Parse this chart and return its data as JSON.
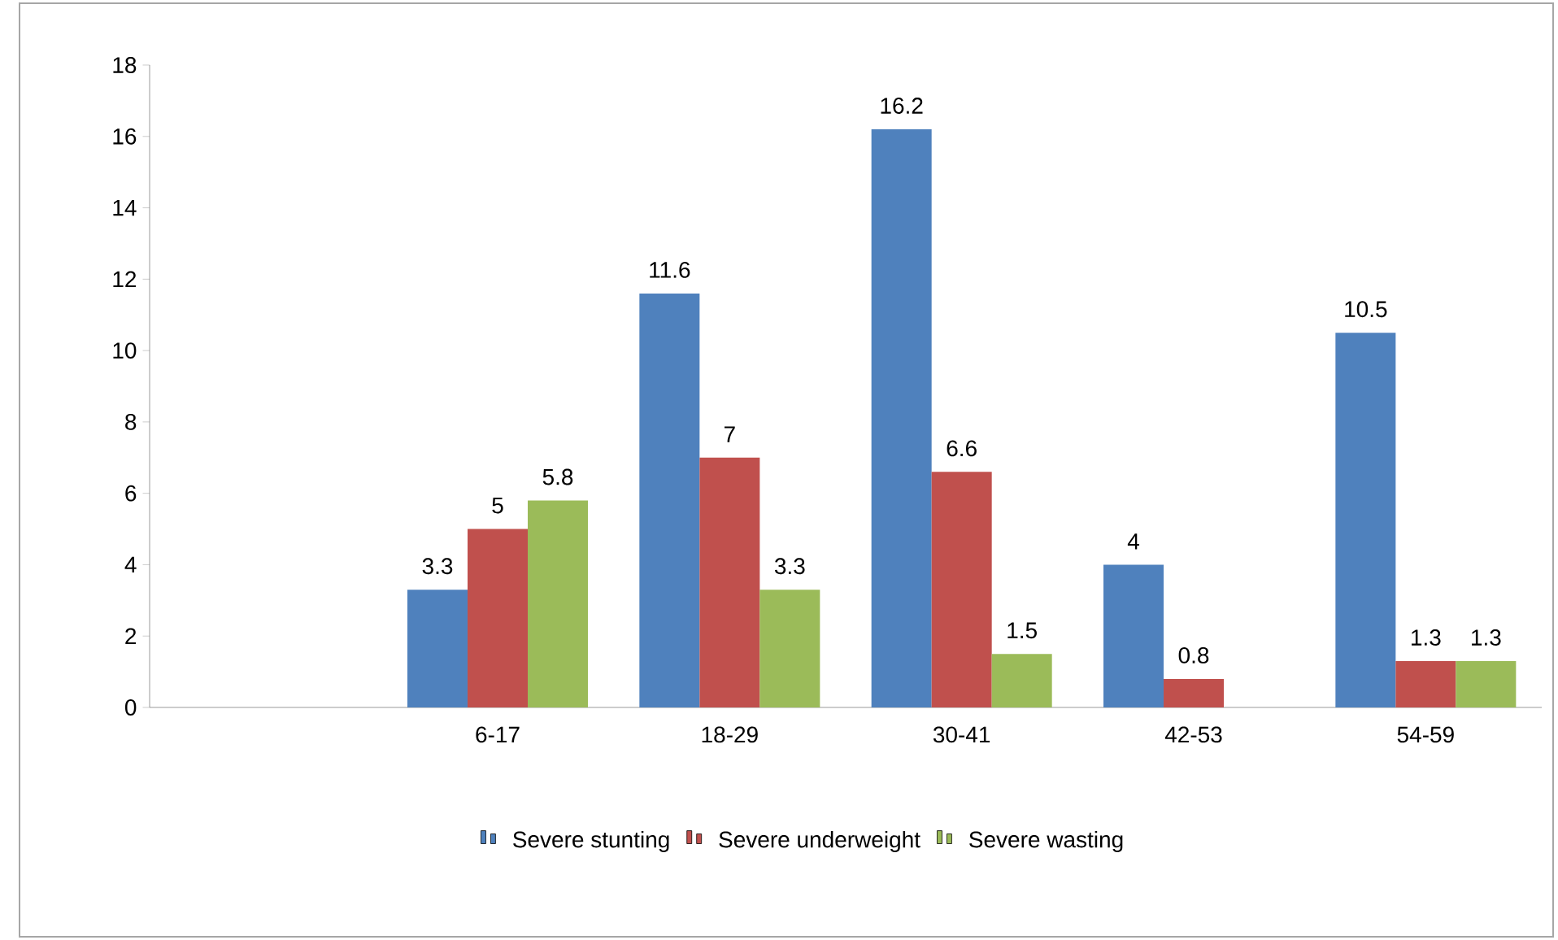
{
  "chart_data": {
    "type": "bar",
    "categories": [
      null,
      "6-17",
      "18-29",
      "30-41",
      "42-53",
      "54-59"
    ],
    "series": [
      {
        "name": "Severe stunting",
        "color": "#4f81bd",
        "values": [
          null,
          3.3,
          11.6,
          16.2,
          4,
          10.5
        ]
      },
      {
        "name": "Severe underweight",
        "color": "#c0504d",
        "values": [
          null,
          5,
          7,
          6.6,
          0.8,
          1.3
        ]
      },
      {
        "name": "Severe wasting",
        "color": "#9bbb59",
        "values": [
          null,
          5.8,
          3.3,
          1.5,
          null,
          1.3
        ]
      }
    ],
    "ylim": [
      0,
      18
    ],
    "yticks": [
      0,
      2,
      4,
      6,
      8,
      10,
      12,
      14,
      16,
      18
    ],
    "data_labels": true,
    "legend": "bottom"
  }
}
